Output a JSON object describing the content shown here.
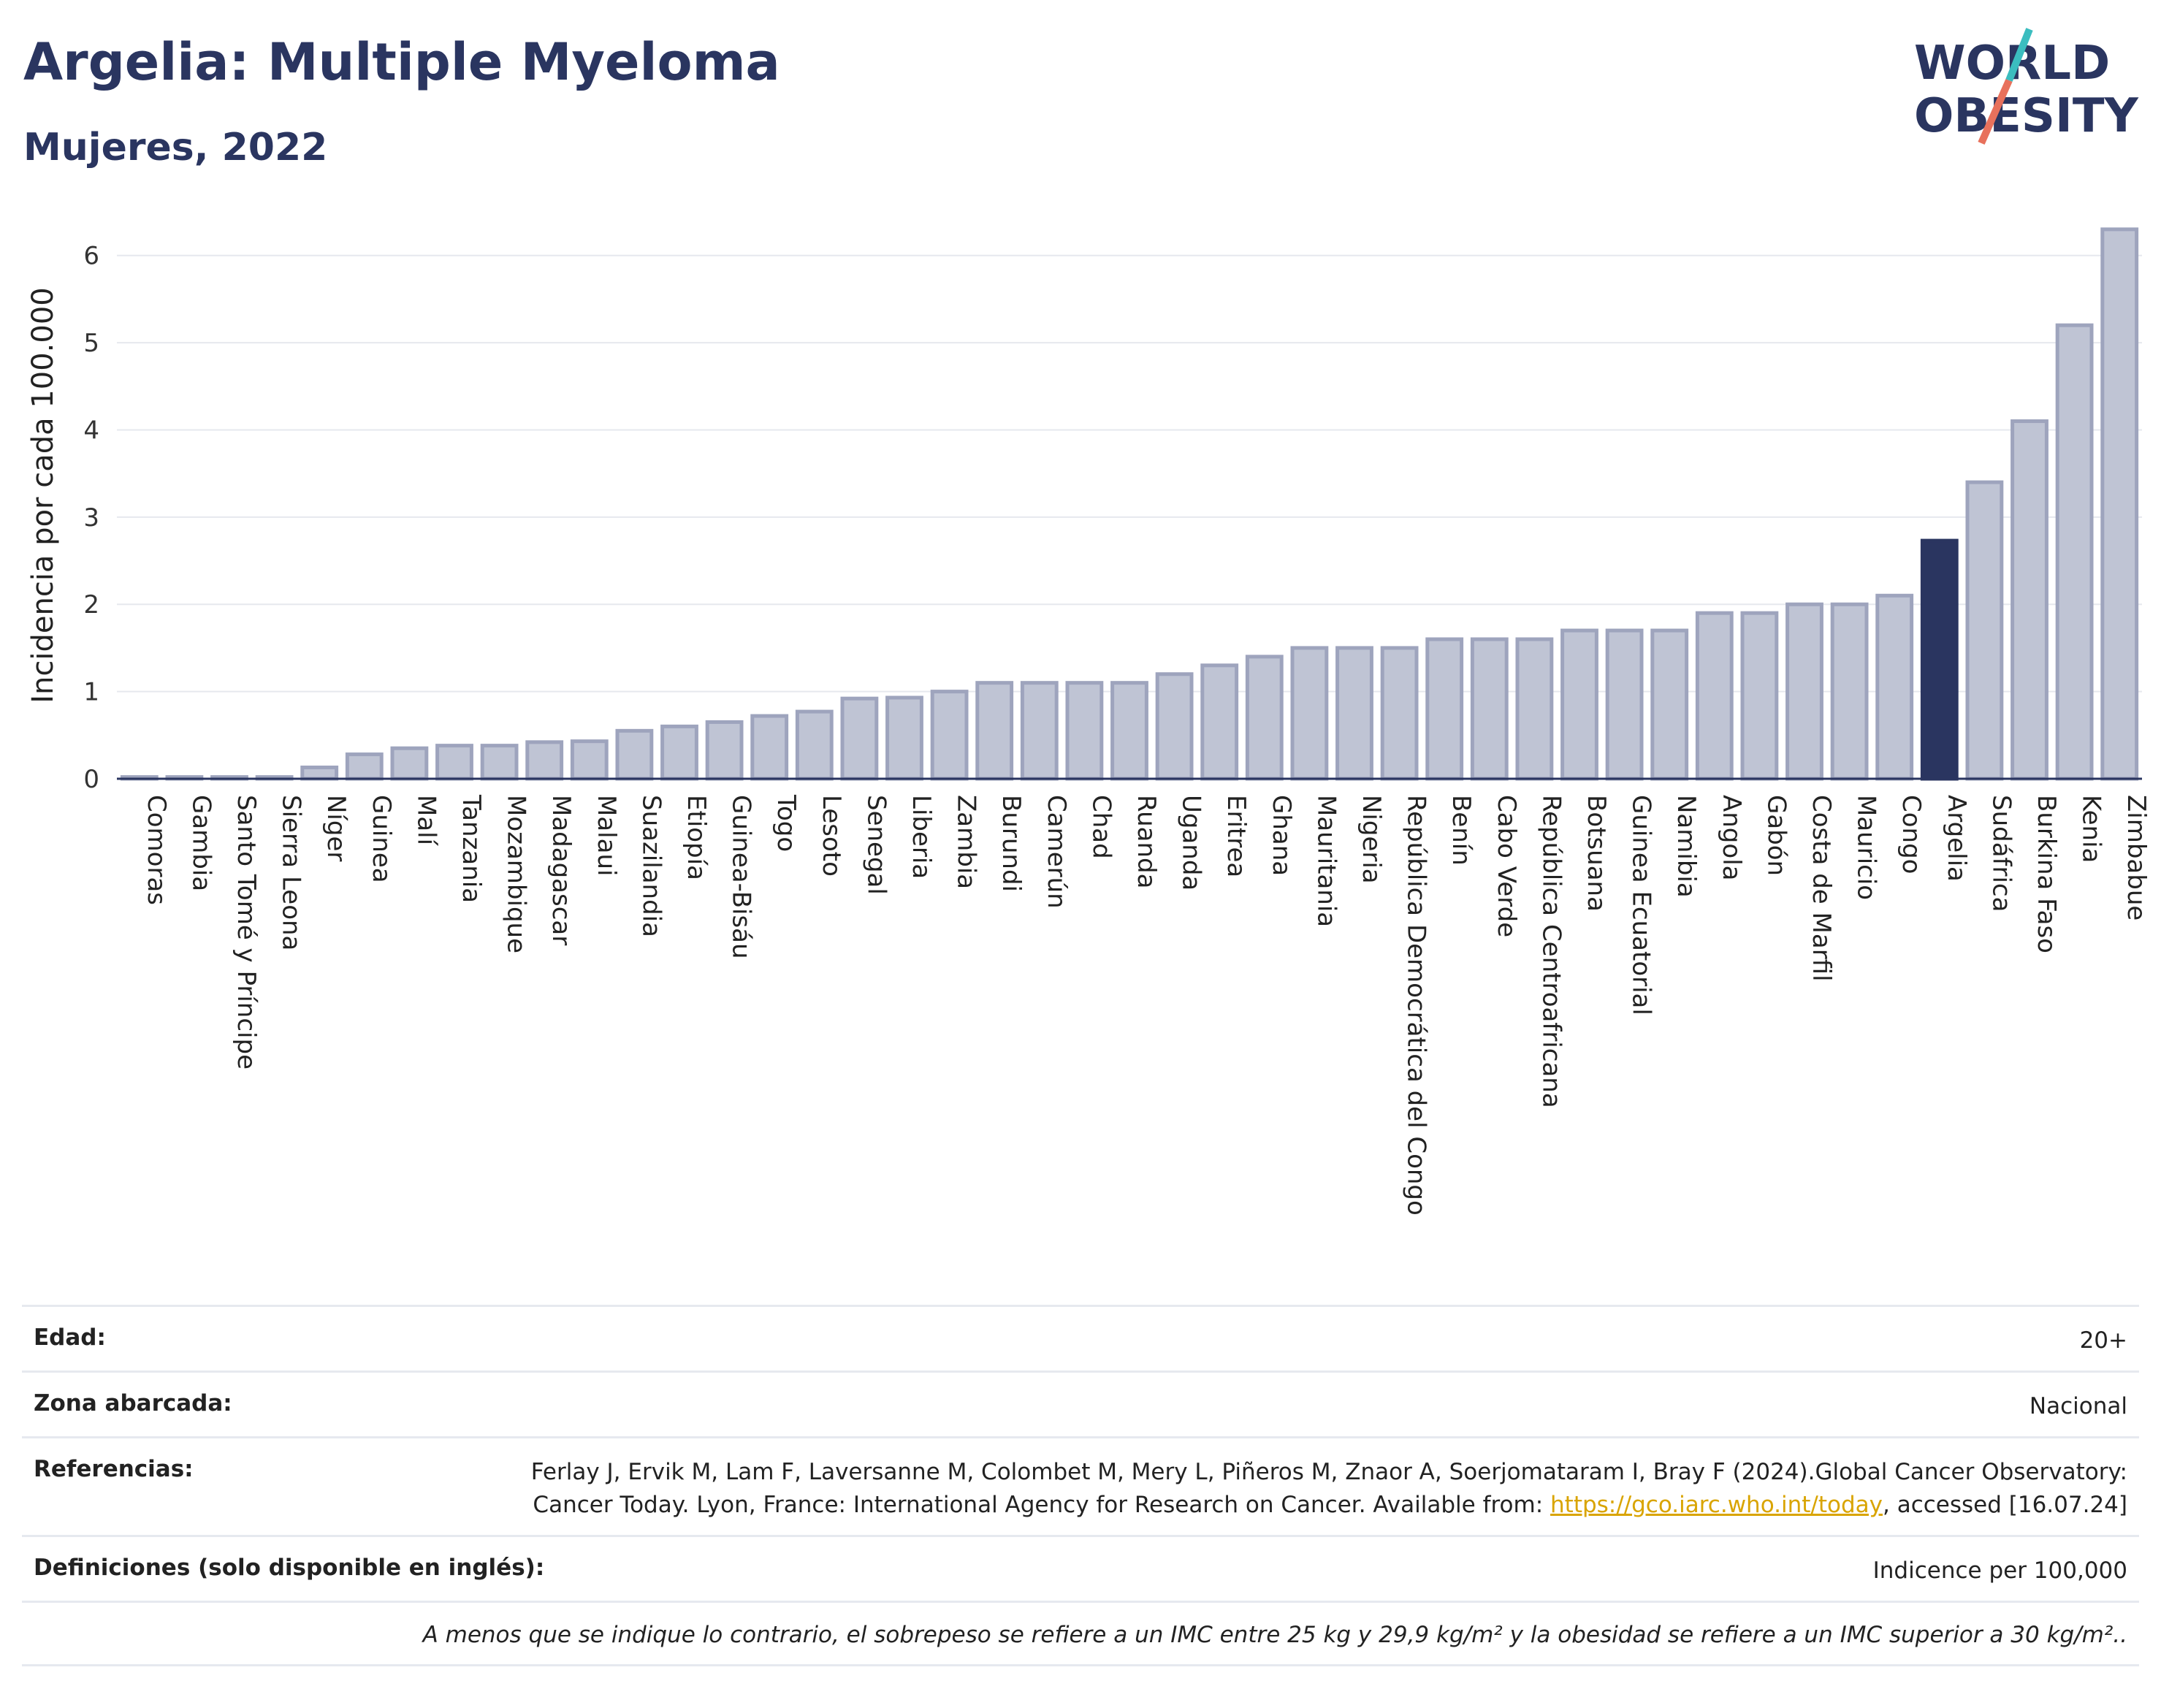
{
  "title": "Argelia: Multiple Myeloma",
  "subtitle": "Mujeres, 2022",
  "logo": {
    "line1": "WORLD",
    "line2": "OBESITY"
  },
  "colors": {
    "bar": "#bfc4d4",
    "bar_stroke": "#9ea4bd",
    "highlight": "#2a3560",
    "accent_teal": "#3bbdbf",
    "accent_coral": "#e8715c"
  },
  "chart_data": {
    "type": "bar",
    "ylabel": "Incidencia por cada 100.000",
    "ylim": [
      0,
      6.5
    ],
    "yticks": [
      0,
      1,
      2,
      3,
      4,
      5,
      6
    ],
    "grid": true,
    "highlight": "Argelia",
    "categories": [
      "Comoras",
      "Gambia",
      "Santo Tomé y Príncipe",
      "Sierra Leona",
      "Níger",
      "Guinea",
      "Malí",
      "Tanzania",
      "Mozambique",
      "Madagascar",
      "Malaui",
      "Suazilandia",
      "Etiopía",
      "Guinea-Bisáu",
      "Togo",
      "Lesoto",
      "Senegal",
      "Liberia",
      "Zambia",
      "Burundi",
      "Camerún",
      "Chad",
      "Ruanda",
      "Uganda",
      "Eritrea",
      "Ghana",
      "Mauritania",
      "Nigeria",
      "República Democrática del Congo",
      "Benín",
      "Cabo Verde",
      "República Centroafricana",
      "Botsuana",
      "Guinea Ecuatorial",
      "Namibia",
      "Angola",
      "Gabón",
      "Costa de Marfil",
      "Mauricio",
      "Congo",
      "Argelia",
      "Sudáfrica",
      "Burkina Faso",
      "Kenia",
      "Zimbabue"
    ],
    "values": [
      0.02,
      0.02,
      0.02,
      0.02,
      0.13,
      0.28,
      0.35,
      0.38,
      0.38,
      0.42,
      0.43,
      0.55,
      0.6,
      0.65,
      0.72,
      0.77,
      0.92,
      0.93,
      1.0,
      1.1,
      1.1,
      1.1,
      1.1,
      1.2,
      1.3,
      1.4,
      1.5,
      1.5,
      1.5,
      1.6,
      1.6,
      1.6,
      1.7,
      1.7,
      1.7,
      1.9,
      1.9,
      2.0,
      2.0,
      2.1,
      2.73,
      3.4,
      4.1,
      5.2,
      6.3
    ]
  },
  "info": {
    "age_label": "Edad:",
    "age_value": "20+",
    "zone_label": "Zona abarcada:",
    "zone_value": "Nacional",
    "ref_label": "Referencias:",
    "ref_text": "Ferlay J, Ervik M, Lam F, Laversanne M, Colombet M, Mery L, Piñeros M, Znaor A, Soerjomataram I, Bray F (2024).Global Cancer Observatory: Cancer Today. Lyon, France: International Agency for Research on Cancer. Available from: ",
    "ref_link": "https://gco.iarc.who.int/today",
    "ref_tail": ", accessed [16.07.24]",
    "def_label": "Definiciones (solo disponible en inglés):",
    "def_value": "Indicence per 100,000",
    "footnote": "A menos que se indique lo contrario, el sobrepeso se refiere a un IMC entre 25 kg y 29,9 kg/m² y la obesidad se refiere a un IMC superior a 30 kg/m².."
  }
}
